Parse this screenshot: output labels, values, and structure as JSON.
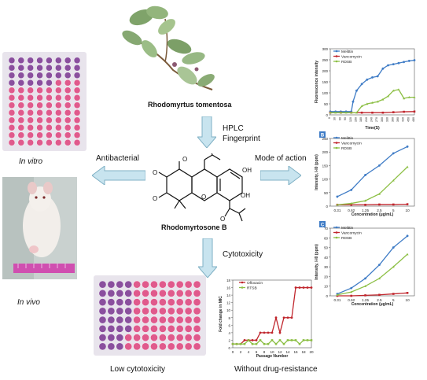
{
  "labels": {
    "plant_name": "Rhodomyrtus tomentosa",
    "hplc": "HPLC",
    "fingerprint": "Fingerprint",
    "antibacterial": "Antibacterial",
    "mode_of_action": "Mode of action",
    "compound": "Rhodomyrtosone B",
    "cytotoxicity": "Cytotoxicity",
    "in_vitro": "In vitro",
    "in_vivo": "In vivo",
    "low_cytotoxicity": "Low cytotoxicity",
    "without_resistance": "Without drug-resistance"
  },
  "colors": {
    "arrow_fill": "#c8e4ef",
    "arrow_stroke": "#7fb0c4",
    "melittin": "#3f7cc6",
    "vancomycin": "#c0262d",
    "rdsb": "#8cbf44",
    "ofloxacin": "#c0262d",
    "rtsb": "#8cbf44",
    "plate_purple": "#8a4f9e",
    "plate_pink": "#e05a8c"
  },
  "chart_data": [
    {
      "type": "line",
      "panel_label": "",
      "ylabel": "Fluorescence intensity",
      "xlabel": "Time(S)",
      "ylim": [
        0,
        300
      ],
      "yticks": [
        "0",
        "50",
        "100",
        "150",
        "200",
        "250",
        "300"
      ],
      "xticks": [
        "0",
        "30",
        "60",
        "90",
        "120",
        "150",
        "180",
        "210",
        "240",
        "270",
        "300",
        "330",
        "360",
        "390",
        "420",
        "450",
        "480"
      ],
      "series": [
        {
          "name": "Melittin",
          "color": "#3f7cc6",
          "x": [
            0,
            30,
            60,
            90,
            120,
            130,
            150,
            180,
            210,
            240,
            270,
            300,
            330,
            360,
            390,
            420,
            450,
            480
          ],
          "y": [
            15,
            15,
            15,
            15,
            15,
            60,
            110,
            140,
            160,
            170,
            175,
            210,
            225,
            230,
            235,
            240,
            245,
            248
          ]
        },
        {
          "name": "Vancomycin",
          "color": "#c0262d",
          "x": [
            0,
            60,
            120,
            180,
            240,
            300,
            360,
            420,
            480
          ],
          "y": [
            10,
            10,
            10,
            10,
            10,
            10,
            12,
            14,
            15
          ]
        },
        {
          "name": "RDSB",
          "color": "#8cbf44",
          "x": [
            0,
            30,
            60,
            90,
            120,
            150,
            180,
            210,
            240,
            270,
            300,
            330,
            360,
            390,
            420,
            450,
            480
          ],
          "y": [
            10,
            10,
            10,
            10,
            10,
            10,
            40,
            50,
            55,
            60,
            70,
            85,
            110,
            115,
            75,
            80,
            80
          ]
        }
      ]
    },
    {
      "type": "line",
      "panel_label": "B",
      "ylabel": "Intensity, I-I0 (ppm)",
      "xlabel": "Concentration (μg/mL)",
      "ylim": [
        0,
        250
      ],
      "yticks": [
        "0",
        "50",
        "100",
        "150",
        "200",
        "250"
      ],
      "xticks": [
        "0.31",
        "0.62",
        "1.25",
        "2.5",
        "5",
        "10"
      ],
      "series": [
        {
          "name": "Melittin",
          "color": "#3f7cc6",
          "x": [
            "0.31",
            "0.62",
            "1.25",
            "2.5",
            "5",
            "10"
          ],
          "y": [
            35,
            60,
            115,
            150,
            195,
            220
          ]
        },
        {
          "name": "Vancomycin",
          "color": "#c0262d",
          "x": [
            "0.31",
            "0.62",
            "1.25",
            "2.5",
            "5",
            "10"
          ],
          "y": [
            5,
            5,
            5,
            6,
            6,
            7
          ]
        },
        {
          "name": "RDSB",
          "color": "#8cbf44",
          "x": [
            "0.31",
            "0.62",
            "1.25",
            "2.5",
            "5",
            "10"
          ],
          "y": [
            5,
            10,
            20,
            45,
            95,
            145
          ]
        }
      ]
    },
    {
      "type": "line",
      "panel_label": "C",
      "ylabel": "Intensity, I-I0 (ppm)",
      "xlabel": "Concentration (μg/mL)",
      "ylim": [
        0,
        70
      ],
      "yticks": [
        "0",
        "10",
        "20",
        "30",
        "40",
        "50",
        "60",
        "70"
      ],
      "xticks": [
        "0.31",
        "0.62",
        "1.25",
        "2.5",
        "5",
        "10"
      ],
      "series": [
        {
          "name": "Melittin",
          "color": "#3f7cc6",
          "x": [
            "0.31",
            "0.62",
            "1.25",
            "2.5",
            "5",
            "10"
          ],
          "y": [
            2,
            8,
            18,
            32,
            50,
            62
          ]
        },
        {
          "name": "Vancomycin",
          "color": "#c0262d",
          "x": [
            "0.31",
            "0.62",
            "1.25",
            "2.5",
            "5",
            "10"
          ],
          "y": [
            0,
            0,
            0.5,
            1,
            2,
            3
          ]
        },
        {
          "name": "RDSB",
          "color": "#8cbf44",
          "x": [
            "0.31",
            "0.62",
            "1.25",
            "2.5",
            "5",
            "10"
          ],
          "y": [
            1,
            4,
            10,
            18,
            30,
            43
          ]
        }
      ]
    },
    {
      "type": "line",
      "panel_label": "",
      "ylabel": "Fold change in MIC",
      "xlabel": "Passage Number",
      "ylim": [
        0,
        18
      ],
      "yticks": [
        "0",
        "2",
        "4",
        "6",
        "8",
        "10",
        "12",
        "14",
        "16",
        "18"
      ],
      "xticks": [
        "0",
        "2",
        "4",
        "6",
        "8",
        "10",
        "12",
        "14",
        "16",
        "18",
        "20"
      ],
      "series": [
        {
          "name": "Ofloxacin",
          "color": "#c0262d",
          "x": [
            0,
            1,
            2,
            3,
            4,
            5,
            6,
            7,
            8,
            9,
            10,
            11,
            12,
            13,
            14,
            15,
            16,
            17,
            18,
            19,
            20
          ],
          "y": [
            1,
            1,
            1,
            2,
            2,
            2,
            2,
            4,
            4,
            4,
            4,
            8,
            4,
            8,
            8,
            8,
            16,
            16,
            16,
            16,
            16
          ]
        },
        {
          "name": "RTSB",
          "color": "#8cbf44",
          "x": [
            0,
            1,
            2,
            3,
            4,
            5,
            6,
            7,
            8,
            9,
            10,
            11,
            12,
            13,
            14,
            15,
            16,
            17,
            18,
            19,
            20
          ],
          "y": [
            1,
            1,
            1,
            1,
            2,
            1,
            1,
            2,
            1,
            1,
            2,
            1,
            2,
            1,
            2,
            2,
            2,
            1,
            2,
            2,
            2
          ]
        }
      ]
    }
  ]
}
